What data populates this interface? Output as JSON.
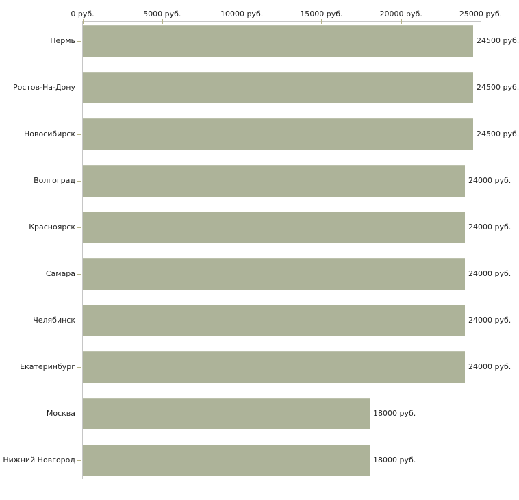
{
  "chart_data": {
    "type": "bar",
    "orientation": "horizontal",
    "title": "",
    "xlabel": "",
    "ylabel": "",
    "grid": false,
    "legend": null,
    "unit": "руб.",
    "xlim": [
      0,
      25000
    ],
    "x_ticks": [
      0,
      5000,
      10000,
      15000,
      20000,
      25000
    ],
    "x_tick_labels": [
      "0 руб.",
      "5000 руб.",
      "10000 руб.",
      "15000 руб.",
      "20000 руб.",
      "25000 руб."
    ],
    "categories": [
      "Пермь",
      "Ростов-На-Дону",
      "Новосибирск",
      "Волгоград",
      "Красноярск",
      "Самара",
      "Челябинск",
      "Екатеринбург",
      "Москва",
      "Нижний Новгород"
    ],
    "values": [
      24500,
      24500,
      24500,
      24000,
      24000,
      24000,
      24000,
      24000,
      18000,
      18000
    ],
    "value_labels": [
      "24500 руб.",
      "24500 руб.",
      "24500 руб.",
      "24000 руб.",
      "24000 руб.",
      "24000 руб.",
      "24000 руб.",
      "24000 руб.",
      "18000 руб.",
      "18000 руб."
    ],
    "colors": {
      "bar": "#adb399",
      "axis_line": "#c6c6c6",
      "tick_mark": "#b5b288",
      "text": "#222222",
      "background": "#ffffff"
    }
  }
}
